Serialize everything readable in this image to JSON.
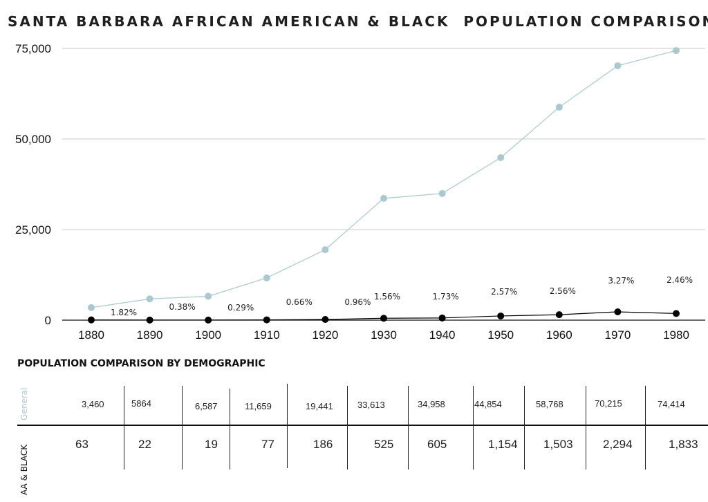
{
  "title": "SANTA BARBARA AFRICAN AMERICAN & BLACK  POPULATION COMPARISON",
  "chart_data": {
    "type": "line",
    "title": "SANTA BARBARA AFRICAN AMERICAN & BLACK  POPULATION COMPARISON",
    "xlabel": "",
    "ylabel": "",
    "ylim": [
      0,
      75000
    ],
    "y_ticks": [
      0,
      25000,
      50000,
      75000
    ],
    "y_tick_labels": [
      "0",
      "25,000",
      "50,000",
      "75,000"
    ],
    "grid": true,
    "categories": [
      "1880",
      "1890",
      "1900",
      "1910",
      "1920",
      "1930",
      "1940",
      "1950",
      "1960",
      "1970",
      "1980"
    ],
    "series": [
      {
        "name": "General",
        "color": "#a9c8cf",
        "values": [
          3460,
          5864,
          6587,
          11659,
          19441,
          33613,
          34958,
          44854,
          58768,
          70215,
          74414
        ]
      },
      {
        "name": "AA & BLACK",
        "color": "#000000",
        "values": [
          63,
          22,
          19,
          77,
          186,
          525,
          605,
          1154,
          1503,
          2294,
          1833
        ]
      }
    ],
    "annotations": [
      "1.82%",
      "0.38%",
      "0.29%",
      "0.66%",
      "0.96%",
      "1.56%",
      "1.73%",
      "2.57%",
      "2.56%",
      "3.27%",
      "2.46%"
    ]
  },
  "table": {
    "title": "POPULATION COMPARISON BY DEMOGRAPHIC",
    "row_labels": [
      "General",
      "AA & BLACK"
    ],
    "general": [
      "3,460",
      "5864",
      "6,587",
      "11,659",
      "19,441",
      "33,613",
      "34,958",
      "44,854",
      "58,768",
      "70,215",
      "74,414"
    ],
    "aa_black": [
      "63",
      "22",
      "19",
      "77",
      "186",
      "525",
      "605",
      "1,154",
      "1,503",
      "2,294",
      "1,833"
    ]
  }
}
